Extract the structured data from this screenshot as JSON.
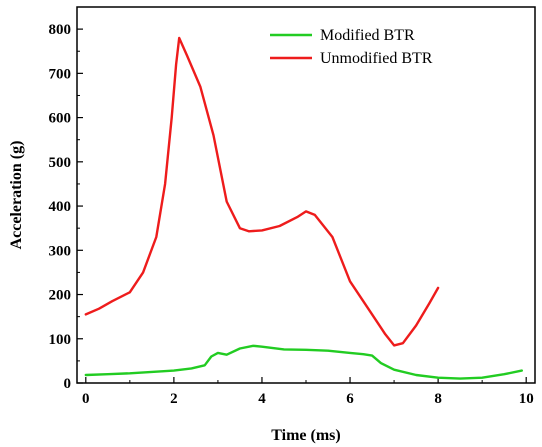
{
  "chart_data": {
    "type": "line",
    "title": "",
    "xlabel": "Time (ms)",
    "ylabel": "Acceleration (g)",
    "xlim": [
      -0.2,
      10.2
    ],
    "ylim": [
      0,
      850
    ],
    "xticks": [
      0,
      2,
      4,
      6,
      8,
      10
    ],
    "yticks": [
      0,
      100,
      200,
      300,
      400,
      500,
      600,
      700,
      800
    ],
    "grid": false,
    "legend_position": "top-right",
    "series": [
      {
        "name": "Modified BTR",
        "color": "#22cc22",
        "x": [
          0,
          0.5,
          1,
          1.5,
          2,
          2.4,
          2.7,
          2.85,
          3.0,
          3.2,
          3.5,
          3.8,
          4.0,
          4.5,
          5.0,
          5.5,
          6.0,
          6.3,
          6.5,
          6.7,
          7.0,
          7.5,
          8.0,
          8.5,
          9.0,
          9.5,
          9.9
        ],
        "y": [
          18,
          20,
          22,
          25,
          28,
          33,
          40,
          60,
          68,
          64,
          78,
          84,
          82,
          76,
          75,
          73,
          68,
          65,
          62,
          45,
          30,
          18,
          12,
          10,
          12,
          20,
          28
        ]
      },
      {
        "name": "Unmodified BTR",
        "color": "#ee1c1c",
        "x": [
          0,
          0.3,
          0.6,
          1.0,
          1.3,
          1.6,
          1.8,
          1.95,
          2.05,
          2.12,
          2.3,
          2.6,
          2.9,
          3.2,
          3.5,
          3.7,
          4.0,
          4.4,
          4.8,
          5.0,
          5.2,
          5.6,
          6.0,
          6.4,
          6.8,
          7.0,
          7.2,
          7.5,
          7.8,
          8.0
        ],
        "y": [
          155,
          168,
          185,
          205,
          250,
          330,
          450,
          600,
          720,
          780,
          740,
          670,
          560,
          410,
          350,
          343,
          345,
          355,
          375,
          388,
          380,
          330,
          230,
          170,
          110,
          85,
          90,
          130,
          180,
          215
        ]
      }
    ]
  }
}
